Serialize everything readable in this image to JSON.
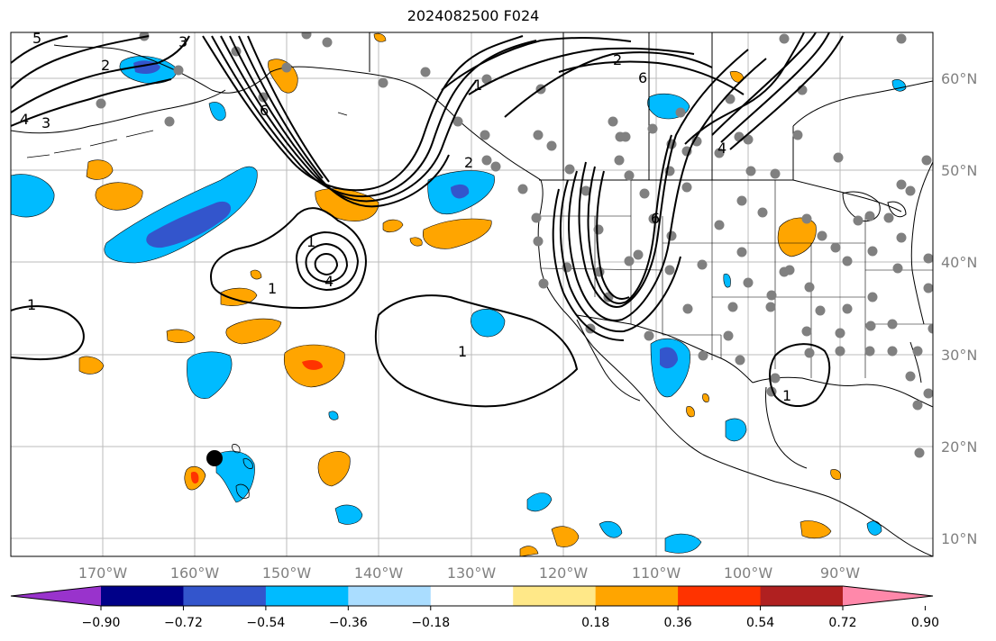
{
  "title": "2024082500 F024",
  "map": {
    "lon_ticks": [
      "170°W",
      "160°W",
      "150°W",
      "140°W",
      "130°W",
      "120°W",
      "110°W",
      "100°W",
      "90°W"
    ],
    "lat_ticks": [
      "60°N",
      "50°N",
      "40°N",
      "30°N",
      "20°N",
      "10°N"
    ],
    "contour_labels": [
      "5",
      "2",
      "3",
      "4",
      "3",
      "6",
      "2",
      "1",
      "2",
      "6",
      "1",
      "1",
      "4",
      "1",
      "6",
      "4",
      "1"
    ],
    "marker": "black-dot"
  },
  "colorbar": {
    "labels": [
      "−0.90",
      "−0.72",
      "−0.54",
      "−0.36",
      "−0.18",
      "0.18",
      "0.36",
      "0.54",
      "0.72",
      "0.90"
    ],
    "colors": [
      "#9933cc",
      "#000088",
      "#3355cc",
      "#00bbff",
      "#aaddff",
      "#ffffff",
      "#ffe888",
      "#ffa500",
      "#ff3300",
      "#b02020",
      "#ff88aa"
    ]
  }
}
